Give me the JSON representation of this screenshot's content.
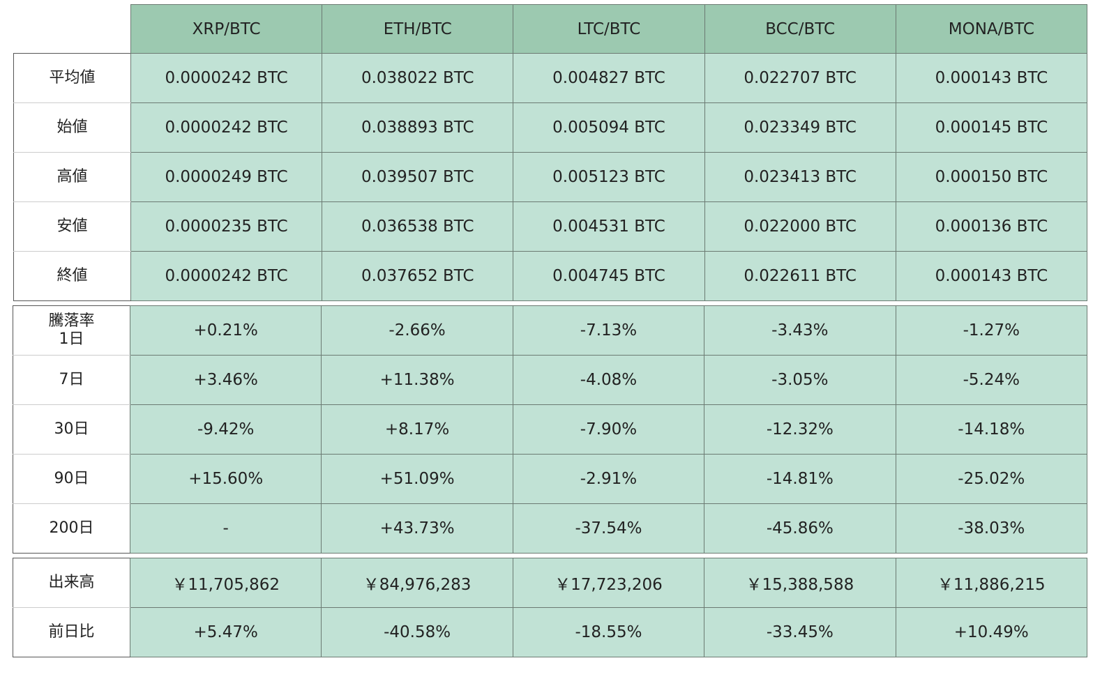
{
  "columns": [
    "XRP/BTC",
    "ETH/BTC",
    "LTC/BTC",
    "BCC/BTC",
    "MONA/BTC"
  ],
  "prices": [
    {
      "label": "平均値",
      "values": [
        "0.0000242 BTC",
        "0.038022 BTC",
        "0.004827 BTC",
        "0.022707 BTC",
        "0.000143 BTC"
      ]
    },
    {
      "label": "始値",
      "values": [
        "0.0000242 BTC",
        "0.038893 BTC",
        "0.005094 BTC",
        "0.023349 BTC",
        "0.000145 BTC"
      ]
    },
    {
      "label": "高値",
      "values": [
        "0.0000249 BTC",
        "0.039507 BTC",
        "0.005123 BTC",
        "0.023413 BTC",
        "0.000150 BTC"
      ]
    },
    {
      "label": "安値",
      "values": [
        "0.0000235 BTC",
        "0.036538 BTC",
        "0.004531 BTC",
        "0.022000 BTC",
        "0.000136 BTC"
      ]
    },
    {
      "label": "終値",
      "values": [
        "0.0000242 BTC",
        "0.037652 BTC",
        "0.004745 BTC",
        "0.022611 BTC",
        "0.000143 BTC"
      ]
    }
  ],
  "change": {
    "title": "騰落率",
    "rows": [
      {
        "label": "1日",
        "values": [
          "+0.21%",
          "-2.66%",
          "-7.13%",
          "-3.43%",
          "-1.27%"
        ]
      },
      {
        "label": "7日",
        "values": [
          "+3.46%",
          "+11.38%",
          "-4.08%",
          "-3.05%",
          "-5.24%"
        ]
      },
      {
        "label": "30日",
        "values": [
          "-9.42%",
          "+8.17%",
          "-7.90%",
          "-12.32%",
          "-14.18%"
        ]
      },
      {
        "label": "90日",
        "values": [
          "+15.60%",
          "+51.09%",
          "-2.91%",
          "-14.81%",
          "-25.02%"
        ]
      },
      {
        "label": "200日",
        "values": [
          "-",
          "+43.73%",
          "-37.54%",
          "-45.86%",
          "-38.03%"
        ]
      }
    ]
  },
  "volume": [
    {
      "label": "出来高",
      "values": [
        "￥11,705,862",
        "￥84,976,283",
        "￥17,723,206",
        "￥15,388,588",
        "￥11,886,215"
      ]
    },
    {
      "label": "前日比",
      "values": [
        "+5.47%",
        "-40.58%",
        "-18.55%",
        "-33.45%",
        "+10.49%"
      ]
    }
  ],
  "colors": {
    "header": "#9cc9b0",
    "cell": "#c1e2d5"
  }
}
